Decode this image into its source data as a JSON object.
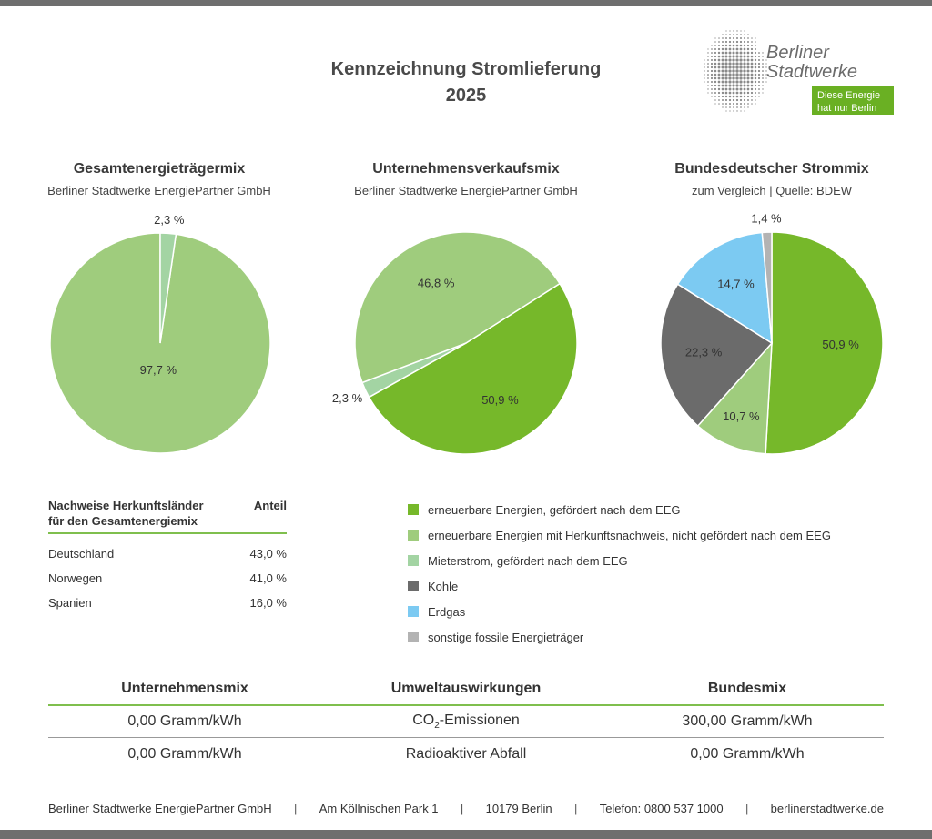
{
  "header": {
    "title_line1": "Kennzeichnung Stromlieferung",
    "title_line2": "2025"
  },
  "logo": {
    "line1": "Berliner",
    "line2": "Stadtwerke",
    "tag1": "Diese Energie",
    "tag2": "hat nur Berlin"
  },
  "colors": {
    "eeg": "#76b82a",
    "hkn": "#9fcc7d",
    "mieter": "#a3d4a3",
    "kohle": "#6b6b6b",
    "erdgas": "#7ccaf2",
    "fossil": "#b3b3b3",
    "accent": "#7fbf4d"
  },
  "charts": [
    {
      "title": "Gesamtenergieträgermix",
      "subtitle": "Berliner Stadtwerke EnergiePartner GmbH"
    },
    {
      "title": "Unternehmensverkaufsmix",
      "subtitle": "Berliner Stadtwerke EnergiePartner GmbH"
    },
    {
      "title": "Bundesdeutscher Strommix",
      "subtitle": "zum Vergleich | Quelle: BDEW"
    }
  ],
  "chart_data": [
    {
      "type": "pie",
      "title": "Gesamtenergieträgermix",
      "slices": [
        {
          "category": "erneuerbare Energien mit Herkunftsnachweis, nicht gefördert nach dem EEG",
          "value": 97.7,
          "label": "97,7 %"
        },
        {
          "category": "Mieterstrom, gefördert nach dem EEG",
          "value": 2.3,
          "label": "2,3 %"
        }
      ]
    },
    {
      "type": "pie",
      "title": "Unternehmensverkaufsmix",
      "slices": [
        {
          "category": "erneuerbare Energien, gefördert nach dem EEG",
          "value": 50.9,
          "label": "50,9 %"
        },
        {
          "category": "Mieterstrom, gefördert nach dem EEG",
          "value": 2.3,
          "label": "2,3 %"
        },
        {
          "category": "erneuerbare Energien mit Herkunftsnachweis, nicht gefördert nach dem EEG",
          "value": 46.8,
          "label": "46,8 %"
        }
      ]
    },
    {
      "type": "pie",
      "title": "Bundesdeutscher Strommix",
      "slices": [
        {
          "category": "erneuerbare Energien, gefördert nach dem EEG",
          "value": 50.9,
          "label": "50,9 %"
        },
        {
          "category": "erneuerbare Energien mit Herkunftsnachweis, nicht gefördert nach dem EEG",
          "value": 10.7,
          "label": "10,7 %"
        },
        {
          "category": "Kohle",
          "value": 22.3,
          "label": "22,3 %"
        },
        {
          "category": "Erdgas",
          "value": 14.7,
          "label": "14,7 %"
        },
        {
          "category": "sonstige fossile Energieträger",
          "value": 1.4,
          "label": "1,4 %"
        }
      ]
    }
  ],
  "origin_table": {
    "header_line1": "Nachweise Herkunftsländer",
    "header_line2": "für den Gesamtenergiemix",
    "header_share": "Anteil",
    "rows": [
      {
        "country": "Deutschland",
        "share": "43,0 %"
      },
      {
        "country": "Norwegen",
        "share": "41,0 %"
      },
      {
        "country": "Spanien",
        "share": "16,0 %"
      }
    ]
  },
  "legend": [
    {
      "label": "erneuerbare Energien, gefördert nach dem EEG",
      "color": "#76b82a"
    },
    {
      "label": "erneuerbare Energien mit Herkunftsnachweis, nicht gefördert nach dem EEG",
      "color": "#9fcc7d"
    },
    {
      "label": "Mieterstrom, gefördert nach dem EEG",
      "color": "#a3d4a3"
    },
    {
      "label": "Kohle",
      "color": "#6b6b6b"
    },
    {
      "label": "Erdgas",
      "color": "#7ccaf2"
    },
    {
      "label": "sonstige fossile Energieträger",
      "color": "#b3b3b3"
    }
  ],
  "impact": {
    "headers": [
      "Unternehmensmix",
      "Umweltauswirkungen",
      "Bundesmix"
    ],
    "rows": [
      {
        "company": "0,00 Gramm/kWh",
        "label_pre": "CO",
        "label_sub": "2",
        "label_post": "-Emissionen",
        "national": "300,00 Gramm/kWh"
      },
      {
        "company": "0,00 Gramm/kWh",
        "label": "Radioaktiver Abfall",
        "national": "0,00 Gramm/kWh"
      }
    ]
  },
  "footer": {
    "company": "Berliner Stadtwerke EnergiePartner GmbH",
    "street": "Am Köllnischen Park 1",
    "city": "10179 Berlin",
    "phone": "Telefon: 0800 537 1000",
    "web": "berlinerstadtwerke.de",
    "separator": "|"
  }
}
